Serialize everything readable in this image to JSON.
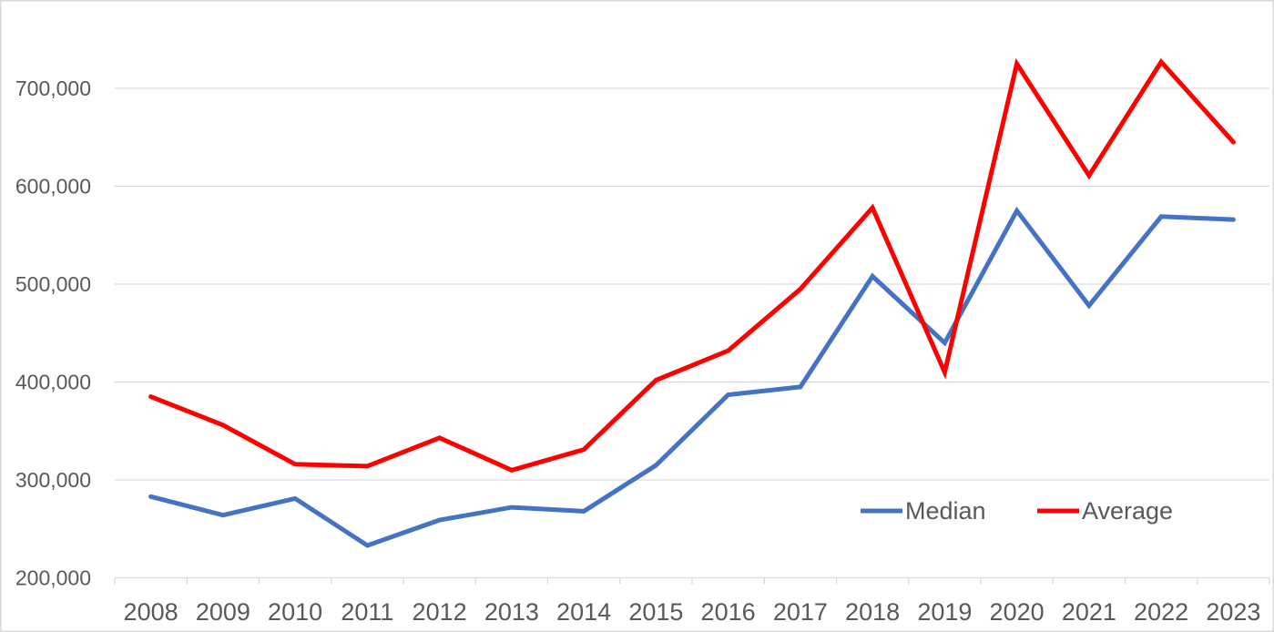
{
  "chart_data": {
    "type": "line",
    "categories": [
      "2008",
      "2009",
      "2010",
      "2011",
      "2012",
      "2013",
      "2014",
      "2015",
      "2016",
      "2017",
      "2018",
      "2019",
      "2020",
      "2021",
      "2022",
      "2023"
    ],
    "series": [
      {
        "name": "Median",
        "color": "#4472C4",
        "values": [
          283000,
          264000,
          281000,
          233000,
          259000,
          272000,
          268000,
          315000,
          387000,
          395000,
          508000,
          440000,
          575000,
          478000,
          569000,
          566000
        ]
      },
      {
        "name": "Average",
        "color": "#FF0000",
        "values": [
          385000,
          356000,
          316000,
          314000,
          343000,
          310000,
          331000,
          402000,
          432000,
          495000,
          578000,
          410000,
          725000,
          611000,
          727000,
          645000
        ]
      }
    ],
    "xlabel": "",
    "ylabel": "",
    "ylim": [
      200000,
      750000
    ],
    "ytick_step": 100000,
    "yticks_labeled": [
      "200,000",
      "300,000",
      "400,000",
      "500,000",
      "600,000",
      "700,000"
    ],
    "grid": "horizontal",
    "legend_position": "inside-bottom-right",
    "axis_label_color": "#595959",
    "gridline_color": "#D9D9D9",
    "border_color": "#D9D9D9",
    "background": "#FFFFFF"
  },
  "legend": {
    "items": [
      {
        "label": "Median",
        "color": "#4472C4"
      },
      {
        "label": "Average",
        "color": "#FF0000"
      }
    ]
  }
}
